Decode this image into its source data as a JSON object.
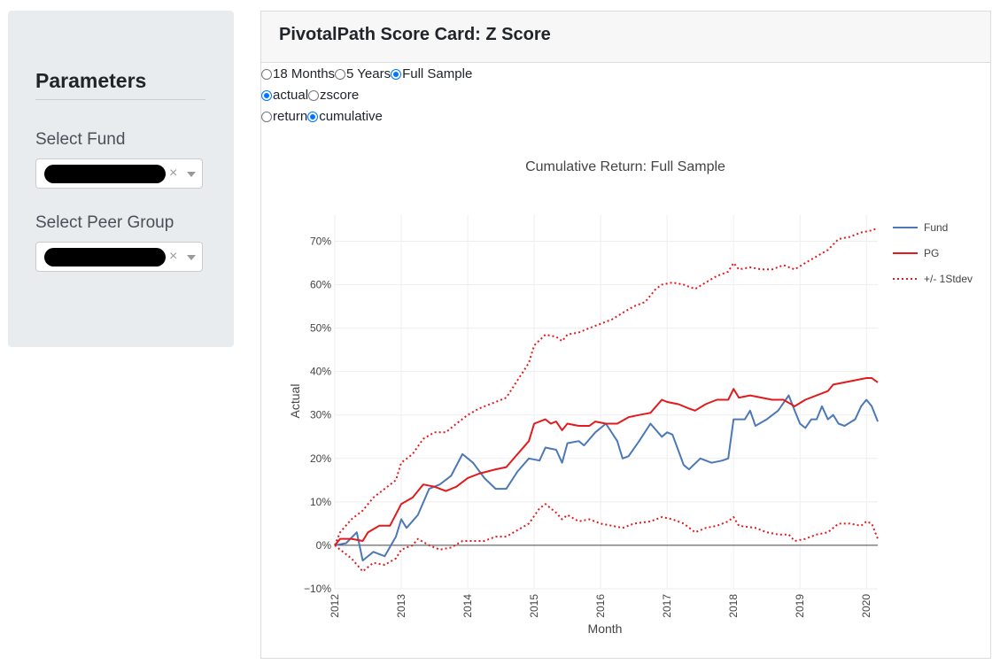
{
  "sidebar": {
    "heading": "Parameters",
    "fund_label": "Select Fund",
    "peer_label": "Select Peer Group",
    "clear_glyph": "×"
  },
  "card": {
    "title": "PivotalPath Score Card: Z Score"
  },
  "controls": {
    "period": [
      {
        "label": "18 Months",
        "selected": false
      },
      {
        "label": "5 Years",
        "selected": false
      },
      {
        "label": "Full Sample",
        "selected": true
      }
    ],
    "measure": [
      {
        "label": "actual",
        "selected": true
      },
      {
        "label": "zscore",
        "selected": false
      }
    ],
    "mode": [
      {
        "label": "return",
        "selected": false
      },
      {
        "label": "cumulative",
        "selected": true
      }
    ]
  },
  "colors": {
    "fund": "#4c78b8",
    "pg": "#e31a1c",
    "band": "#e31a1c",
    "selected_radio": "#0075ff"
  },
  "chart_data": {
    "type": "line",
    "title": "Cumulative Return: Full Sample",
    "xlabel": "Month",
    "ylabel": "Actual",
    "xlim": [
      2012.0,
      2020.17
    ],
    "ylim": [
      -10,
      76
    ],
    "x_ticks": [
      "2012",
      "2013",
      "2014",
      "2015",
      "2016",
      "2017",
      "2018",
      "2019",
      "2020"
    ],
    "y_ticks": [
      "−10%",
      "0%",
      "10%",
      "20%",
      "30%",
      "40%",
      "50%",
      "60%",
      "70%"
    ],
    "y_tick_values": [
      -10,
      0,
      10,
      20,
      30,
      40,
      50,
      60,
      70
    ],
    "grid": true,
    "legend": "top-right",
    "series": [
      {
        "name": "Fund",
        "style": "solid",
        "points": [
          [
            2012.0,
            0
          ],
          [
            2012.17,
            0.5
          ],
          [
            2012.33,
            3
          ],
          [
            2012.42,
            -3.5
          ],
          [
            2012.58,
            -1.5
          ],
          [
            2012.75,
            -2.5
          ],
          [
            2012.92,
            2
          ],
          [
            2013.0,
            6
          ],
          [
            2013.08,
            4
          ],
          [
            2013.25,
            7
          ],
          [
            2013.42,
            13
          ],
          [
            2013.58,
            14
          ],
          [
            2013.75,
            16
          ],
          [
            2013.92,
            21
          ],
          [
            2014.08,
            19
          ],
          [
            2014.25,
            15.5
          ],
          [
            2014.42,
            13
          ],
          [
            2014.58,
            13
          ],
          [
            2014.75,
            17
          ],
          [
            2014.92,
            20
          ],
          [
            2015.08,
            19.5
          ],
          [
            2015.17,
            22.5
          ],
          [
            2015.33,
            22
          ],
          [
            2015.42,
            19
          ],
          [
            2015.5,
            23.5
          ],
          [
            2015.67,
            24
          ],
          [
            2015.75,
            23
          ],
          [
            2015.92,
            26
          ],
          [
            2016.08,
            28
          ],
          [
            2016.25,
            24
          ],
          [
            2016.33,
            20
          ],
          [
            2016.42,
            20.5
          ],
          [
            2016.58,
            24
          ],
          [
            2016.75,
            28
          ],
          [
            2016.92,
            25
          ],
          [
            2017.0,
            26
          ],
          [
            2017.08,
            25.5
          ],
          [
            2017.25,
            18.5
          ],
          [
            2017.33,
            17.5
          ],
          [
            2017.5,
            20
          ],
          [
            2017.67,
            19
          ],
          [
            2017.83,
            19.5
          ],
          [
            2017.92,
            20
          ],
          [
            2018.0,
            29
          ],
          [
            2018.17,
            29
          ],
          [
            2018.25,
            31
          ],
          [
            2018.33,
            27.5
          ],
          [
            2018.5,
            29
          ],
          [
            2018.67,
            31
          ],
          [
            2018.83,
            34.5
          ],
          [
            2018.92,
            31
          ],
          [
            2019.0,
            28
          ],
          [
            2019.08,
            27
          ],
          [
            2019.17,
            29
          ],
          [
            2019.25,
            29
          ],
          [
            2019.33,
            32
          ],
          [
            2019.42,
            29
          ],
          [
            2019.5,
            30
          ],
          [
            2019.58,
            28
          ],
          [
            2019.67,
            27.5
          ],
          [
            2019.83,
            29
          ],
          [
            2019.92,
            32
          ],
          [
            2020.0,
            33.5
          ],
          [
            2020.08,
            32
          ],
          [
            2020.17,
            28.5
          ]
        ]
      },
      {
        "name": "PG",
        "style": "solid",
        "points": [
          [
            2012.0,
            0
          ],
          [
            2012.08,
            1.5
          ],
          [
            2012.25,
            1.5
          ],
          [
            2012.42,
            1
          ],
          [
            2012.5,
            3
          ],
          [
            2012.67,
            4.5
          ],
          [
            2012.83,
            4.5
          ],
          [
            2013.0,
            9.5
          ],
          [
            2013.17,
            11
          ],
          [
            2013.33,
            14
          ],
          [
            2013.5,
            13.5
          ],
          [
            2013.67,
            12.5
          ],
          [
            2013.83,
            13.5
          ],
          [
            2014.0,
            15.5
          ],
          [
            2014.17,
            16.5
          ],
          [
            2014.42,
            17.5
          ],
          [
            2014.58,
            18
          ],
          [
            2014.75,
            21
          ],
          [
            2014.92,
            24
          ],
          [
            2015.0,
            28
          ],
          [
            2015.17,
            29
          ],
          [
            2015.25,
            28
          ],
          [
            2015.33,
            28.5
          ],
          [
            2015.42,
            26.5
          ],
          [
            2015.5,
            28
          ],
          [
            2015.67,
            27.5
          ],
          [
            2015.83,
            27.5
          ],
          [
            2015.92,
            28.5
          ],
          [
            2016.08,
            28
          ],
          [
            2016.25,
            28
          ],
          [
            2016.42,
            29.5
          ],
          [
            2016.58,
            30
          ],
          [
            2016.75,
            30.5
          ],
          [
            2016.92,
            33.5
          ],
          [
            2017.0,
            33
          ],
          [
            2017.17,
            32.5
          ],
          [
            2017.33,
            31.5
          ],
          [
            2017.42,
            31
          ],
          [
            2017.58,
            32.5
          ],
          [
            2017.75,
            33.5
          ],
          [
            2017.92,
            33.5
          ],
          [
            2018.0,
            36
          ],
          [
            2018.08,
            34
          ],
          [
            2018.25,
            34.5
          ],
          [
            2018.42,
            34
          ],
          [
            2018.58,
            33.5
          ],
          [
            2018.75,
            33.5
          ],
          [
            2018.92,
            32
          ],
          [
            2019.08,
            33.5
          ],
          [
            2019.25,
            34.5
          ],
          [
            2019.42,
            35.5
          ],
          [
            2019.5,
            37
          ],
          [
            2019.67,
            37.5
          ],
          [
            2019.83,
            38
          ],
          [
            2020.0,
            38.5
          ],
          [
            2020.08,
            38.5
          ],
          [
            2020.17,
            37.5
          ]
        ]
      },
      {
        "name": "+/- 1Stdev",
        "style": "dotted",
        "points": [
          [
            2012.0,
            0
          ],
          [
            2012.08,
            3
          ],
          [
            2012.25,
            6
          ],
          [
            2012.42,
            8
          ],
          [
            2012.58,
            11
          ],
          [
            2012.75,
            13
          ],
          [
            2012.92,
            15
          ],
          [
            2013.0,
            19
          ],
          [
            2013.17,
            21
          ],
          [
            2013.33,
            24.5
          ],
          [
            2013.5,
            26
          ],
          [
            2013.67,
            26
          ],
          [
            2013.83,
            28
          ],
          [
            2014.0,
            30
          ],
          [
            2014.17,
            31.5
          ],
          [
            2014.42,
            33
          ],
          [
            2014.58,
            34
          ],
          [
            2014.75,
            38
          ],
          [
            2014.92,
            42
          ],
          [
            2015.0,
            46
          ],
          [
            2015.17,
            48.5
          ],
          [
            2015.33,
            48
          ],
          [
            2015.42,
            47
          ],
          [
            2015.5,
            48.5
          ],
          [
            2015.67,
            49
          ],
          [
            2015.83,
            50
          ],
          [
            2016.0,
            51
          ],
          [
            2016.17,
            52
          ],
          [
            2016.33,
            53.5
          ],
          [
            2016.5,
            55
          ],
          [
            2016.67,
            56
          ],
          [
            2016.83,
            59
          ],
          [
            2016.92,
            60
          ],
          [
            2017.08,
            60.5
          ],
          [
            2017.25,
            60
          ],
          [
            2017.42,
            59
          ],
          [
            2017.58,
            60.5
          ],
          [
            2017.75,
            62
          ],
          [
            2017.92,
            63
          ],
          [
            2018.0,
            65
          ],
          [
            2018.08,
            63.5
          ],
          [
            2018.25,
            64
          ],
          [
            2018.42,
            63.5
          ],
          [
            2018.58,
            63.5
          ],
          [
            2018.75,
            64.5
          ],
          [
            2018.92,
            63.5
          ],
          [
            2019.08,
            65
          ],
          [
            2019.25,
            66.5
          ],
          [
            2019.42,
            68
          ],
          [
            2019.58,
            70.5
          ],
          [
            2019.75,
            71
          ],
          [
            2019.92,
            72
          ],
          [
            2020.08,
            72.5
          ],
          [
            2020.17,
            73
          ]
        ]
      },
      {
        "name": "+/- 1Stdev",
        "style": "dotted",
        "show_in_legend": false,
        "points": [
          [
            2012.0,
            0
          ],
          [
            2012.08,
            -1
          ],
          [
            2012.25,
            -3
          ],
          [
            2012.42,
            -6
          ],
          [
            2012.58,
            -4
          ],
          [
            2012.75,
            -4.5
          ],
          [
            2012.92,
            -3
          ],
          [
            2013.0,
            -1
          ],
          [
            2013.17,
            0
          ],
          [
            2013.25,
            1.5
          ],
          [
            2013.42,
            0
          ],
          [
            2013.58,
            -1
          ],
          [
            2013.75,
            -0.5
          ],
          [
            2013.92,
            1
          ],
          [
            2014.08,
            1
          ],
          [
            2014.25,
            1
          ],
          [
            2014.42,
            2
          ],
          [
            2014.58,
            2
          ],
          [
            2014.75,
            3.5
          ],
          [
            2014.92,
            5
          ],
          [
            2015.08,
            8.5
          ],
          [
            2015.17,
            9.5
          ],
          [
            2015.33,
            7.5
          ],
          [
            2015.42,
            6
          ],
          [
            2015.5,
            7
          ],
          [
            2015.67,
            5.5
          ],
          [
            2015.83,
            6
          ],
          [
            2016.0,
            5
          ],
          [
            2016.17,
            4.5
          ],
          [
            2016.33,
            4
          ],
          [
            2016.5,
            5
          ],
          [
            2016.75,
            5.5
          ],
          [
            2016.92,
            6.5
          ],
          [
            2017.08,
            6
          ],
          [
            2017.25,
            5
          ],
          [
            2017.42,
            3
          ],
          [
            2017.58,
            4
          ],
          [
            2017.75,
            4.5
          ],
          [
            2017.92,
            5.5
          ],
          [
            2018.0,
            6.5
          ],
          [
            2018.08,
            4.5
          ],
          [
            2018.33,
            4
          ],
          [
            2018.5,
            3
          ],
          [
            2018.67,
            2.5
          ],
          [
            2018.83,
            2.5
          ],
          [
            2018.92,
            1
          ],
          [
            2019.08,
            1.5
          ],
          [
            2019.25,
            2.5
          ],
          [
            2019.42,
            3
          ],
          [
            2019.58,
            5
          ],
          [
            2019.75,
            5
          ],
          [
            2019.92,
            4.5
          ],
          [
            2020.0,
            5.5
          ],
          [
            2020.08,
            5
          ],
          [
            2020.17,
            1.5
          ]
        ]
      }
    ]
  }
}
